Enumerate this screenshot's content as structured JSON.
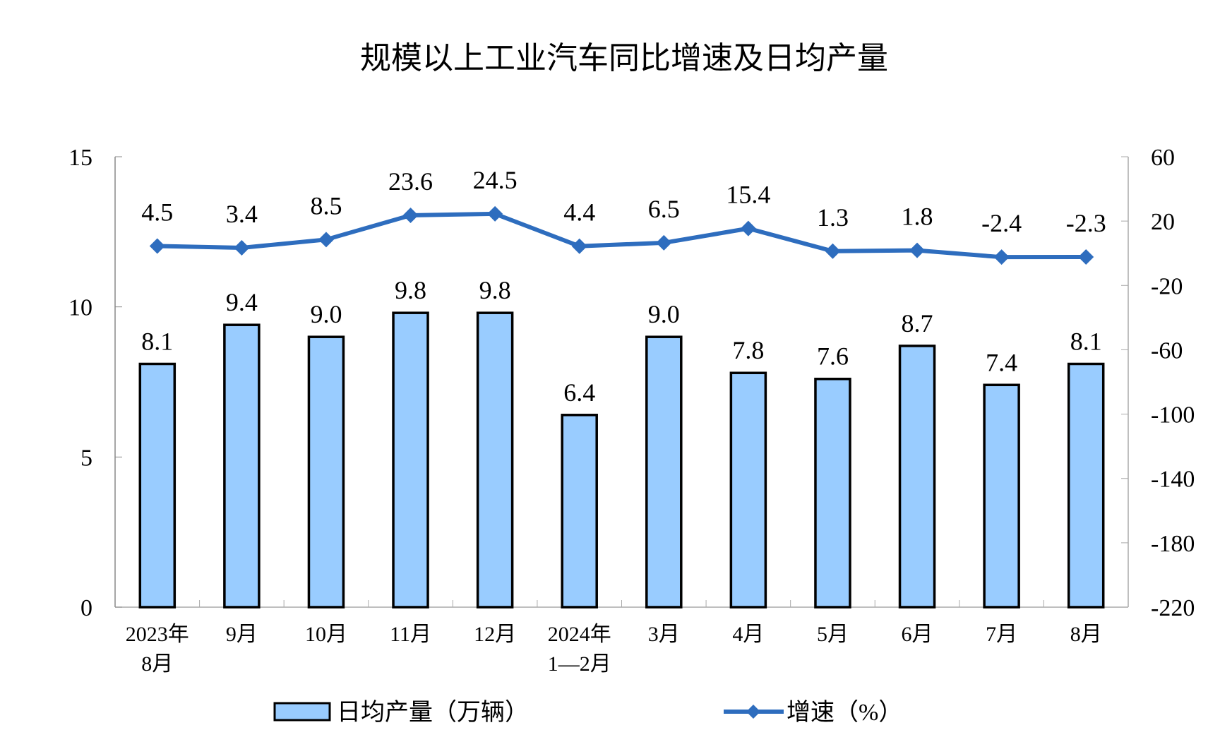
{
  "chart_data": {
    "type": "bar+line",
    "title": "规模以上工业汽车同比增速及日均产量",
    "categories": [
      [
        "2023年",
        "8月"
      ],
      [
        "9月"
      ],
      [
        "10月"
      ],
      [
        "11月"
      ],
      [
        "12月"
      ],
      [
        "2024年",
        "1—2月"
      ],
      [
        "3月"
      ],
      [
        "4月"
      ],
      [
        "5月"
      ],
      [
        "6月"
      ],
      [
        "7月"
      ],
      [
        "8月"
      ]
    ],
    "series": [
      {
        "name": "日均产量（万辆）",
        "type": "bar",
        "axis": "left",
        "color": "#99CCFF",
        "values": [
          8.1,
          9.4,
          9.0,
          9.8,
          9.8,
          6.4,
          9.0,
          7.8,
          7.6,
          8.7,
          7.4,
          8.1
        ],
        "labels": [
          "8.1",
          "9.4",
          "9.0",
          "9.8",
          "9.8",
          "6.4",
          "9.0",
          "7.8",
          "7.6",
          "8.7",
          "7.4",
          "8.1"
        ]
      },
      {
        "name": "增速（%）",
        "type": "line",
        "axis": "right",
        "color": "#2E6DBE",
        "values": [
          4.5,
          3.4,
          8.5,
          23.6,
          24.5,
          4.4,
          6.5,
          15.4,
          1.3,
          1.8,
          -2.4,
          -2.3
        ],
        "labels": [
          "4.5",
          "3.4",
          "8.5",
          "23.6",
          "24.5",
          "4.4",
          "6.5",
          "15.4",
          "1.3",
          "1.8",
          "-2.4",
          "-2.3"
        ]
      }
    ],
    "left_axis": {
      "ylim": [
        0,
        15
      ],
      "ticks": [
        "0",
        "5",
        "10",
        "15"
      ]
    },
    "right_axis": {
      "ylim": [
        -220,
        60
      ],
      "ticks": [
        "60",
        "20",
        "-20",
        "-60",
        "-100",
        "-140",
        "-180",
        "-220"
      ]
    },
    "legend_placement": "bottom",
    "grid": false
  }
}
